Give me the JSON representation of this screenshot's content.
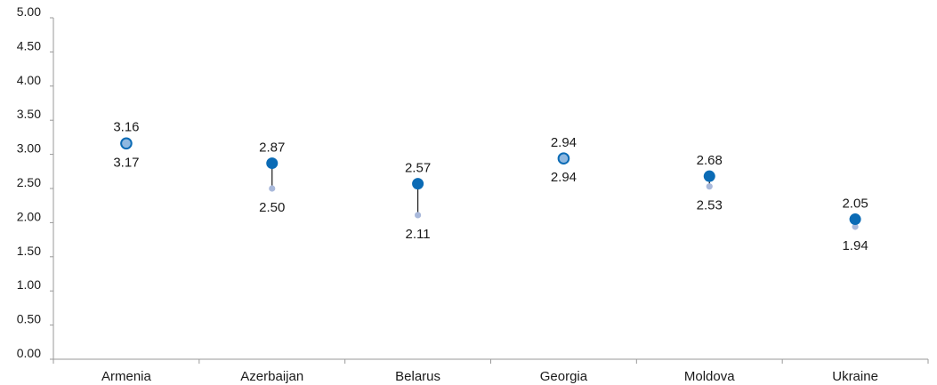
{
  "chart_data": {
    "type": "scatter",
    "categories": [
      "Armenia",
      "Azerbaijan",
      "Belarus",
      "Georgia",
      "Moldova",
      "Ukraine"
    ],
    "series": [
      {
        "values": [
          3.16,
          2.87,
          2.57,
          2.94,
          2.68,
          2.05
        ],
        "color": "#0b6bb5"
      },
      {
        "values": [
          3.17,
          2.5,
          2.11,
          2.94,
          2.53,
          1.94
        ],
        "color": "#a9b9db"
      }
    ],
    "labels_top": [
      "3.16",
      "2.87",
      "2.57",
      "2.94",
      "2.68",
      "2.05"
    ],
    "labels_bottom": [
      "3.17",
      "2.50",
      "2.11",
      "2.94",
      "2.53",
      "1.94"
    ],
    "yticks": [
      "0.00",
      "0.50",
      "1.00",
      "1.50",
      "2.00",
      "2.50",
      "3.00",
      "3.50",
      "4.00",
      "4.50",
      "5.00"
    ],
    "ylim": [
      0,
      5
    ],
    "grid": false,
    "connector_color": "#1a1a1a"
  }
}
